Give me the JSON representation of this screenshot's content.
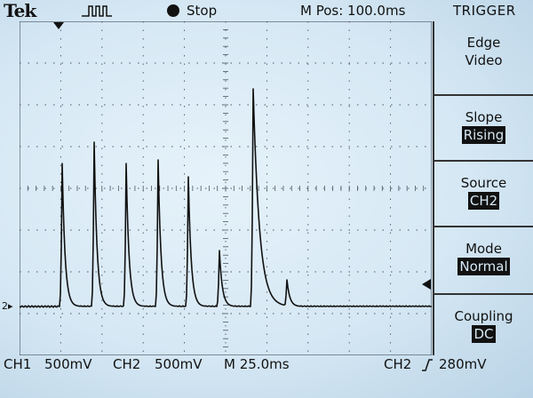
{
  "header": {
    "brand": "Tek",
    "acq_state": "Stop",
    "horizontal_position": "M Pos: 100.0ms",
    "menu_title": "TRIGGER"
  },
  "menu": {
    "items": [
      {
        "label": "Edge",
        "value": "Video",
        "selected_inverted": false
      },
      {
        "label": "Slope",
        "value": "Rising",
        "selected_inverted": true
      },
      {
        "label": "Source",
        "value": "CH2",
        "selected_inverted": true
      },
      {
        "label": "Mode",
        "value": "Normal",
        "selected_inverted": true
      },
      {
        "label": "Coupling",
        "value": "DC",
        "selected_inverted": true
      }
    ]
  },
  "footer": {
    "ch1_label": "CH1",
    "ch1_scale": "500mV",
    "ch2_label": "CH2",
    "ch2_scale": "500mV",
    "timebase": "M 25.0ms",
    "trigger_source": "CH2",
    "trigger_slope_icon": "rising-edge-icon",
    "trigger_level": "280mV"
  },
  "markers": {
    "ground_label": "2"
  },
  "colors": {
    "screen_bg": "#d6e8f4",
    "trace": "#111111",
    "grid": "#4a5560"
  }
}
